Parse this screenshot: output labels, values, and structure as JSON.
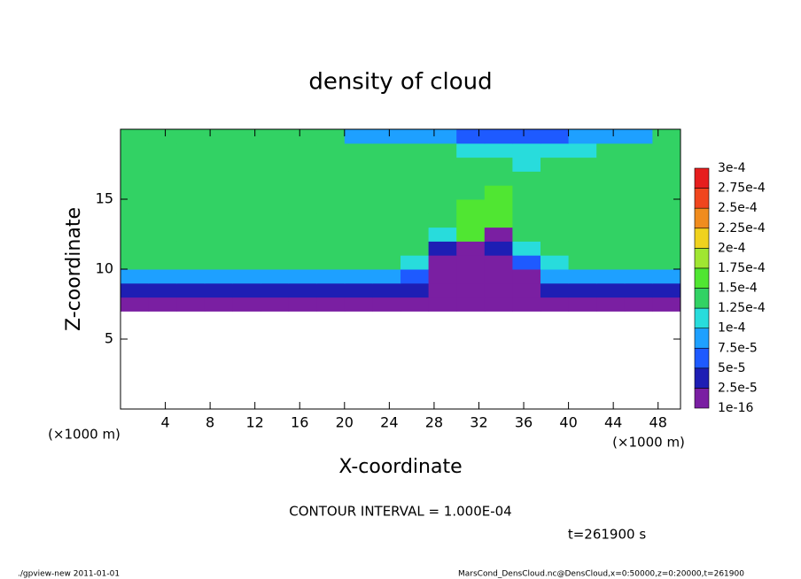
{
  "chart_data": {
    "type": "heatmap",
    "title": "density of cloud",
    "x_label": "X-coordinate",
    "y_label": "Z-coordinate",
    "x_unit_label": "(×1000 m)",
    "y_unit_label": "(×1000 m)",
    "xlim": [
      0,
      50
    ],
    "ylim": [
      0,
      20
    ],
    "xticks": [
      4,
      8,
      12,
      16,
      20,
      24,
      28,
      32,
      36,
      40,
      44,
      48
    ],
    "yticks": [
      5,
      10,
      15
    ],
    "x": [
      1.25,
      3.75,
      6.25,
      8.75,
      11.25,
      13.75,
      16.25,
      18.75,
      21.25,
      23.75,
      26.25,
      28.75,
      31.25,
      33.75,
      36.25,
      38.75,
      41.25,
      43.75,
      46.25,
      48.75
    ],
    "z": [
      0.5,
      1.5,
      2.5,
      3.5,
      4.5,
      5.5,
      6.5,
      7.5,
      8.5,
      9.5,
      10.5,
      11.5,
      12.5,
      13.5,
      14.5,
      15.5,
      16.5,
      17.5,
      18.5,
      19.5
    ],
    "field": [
      [
        null,
        null,
        null,
        null,
        null,
        null,
        null,
        null,
        null,
        null,
        null,
        null,
        null,
        null,
        null,
        null,
        null,
        null,
        null,
        null
      ],
      [
        null,
        null,
        null,
        null,
        null,
        null,
        null,
        null,
        null,
        null,
        null,
        null,
        null,
        null,
        null,
        null,
        null,
        null,
        null,
        null
      ],
      [
        null,
        null,
        null,
        null,
        null,
        null,
        null,
        null,
        null,
        null,
        null,
        null,
        null,
        null,
        null,
        null,
        null,
        null,
        null,
        null
      ],
      [
        null,
        null,
        null,
        null,
        null,
        null,
        null,
        null,
        null,
        null,
        null,
        null,
        null,
        null,
        null,
        null,
        null,
        null,
        null,
        null
      ],
      [
        null,
        null,
        null,
        null,
        null,
        null,
        null,
        null,
        null,
        null,
        null,
        null,
        null,
        null,
        null,
        null,
        null,
        null,
        null,
        null
      ],
      [
        null,
        null,
        null,
        null,
        null,
        null,
        null,
        null,
        null,
        null,
        null,
        null,
        null,
        null,
        null,
        null,
        null,
        null,
        null,
        null
      ],
      [
        null,
        null,
        null,
        null,
        null,
        null,
        null,
        null,
        null,
        null,
        null,
        null,
        null,
        null,
        null,
        null,
        null,
        null,
        null,
        null
      ],
      [
        1e-05,
        1e-05,
        1e-05,
        1e-05,
        1e-05,
        1e-05,
        1e-05,
        1e-05,
        1e-05,
        1e-05,
        1e-05,
        1e-05,
        1e-05,
        1e-05,
        1e-05,
        1e-05,
        1e-05,
        1e-05,
        1e-05,
        1e-05
      ],
      [
        4e-05,
        4e-05,
        4e-05,
        4e-05,
        4e-05,
        4e-05,
        4e-05,
        4e-05,
        4e-05,
        4e-05,
        4e-05,
        2e-05,
        2e-05,
        2e-05,
        2e-05,
        4e-05,
        4e-05,
        4e-05,
        4e-05,
        4e-05
      ],
      [
        8e-05,
        8e-05,
        8e-05,
        8e-05,
        8e-05,
        8e-05,
        8e-05,
        8e-05,
        8e-05,
        8e-05,
        6e-05,
        2e-05,
        2e-05,
        2e-05,
        2e-05,
        8e-05,
        8e-05,
        8e-05,
        8e-05,
        8e-05
      ],
      [
        0.00013,
        0.00013,
        0.00013,
        0.00013,
        0.00013,
        0.00013,
        0.00013,
        0.00013,
        0.00013,
        0.00013,
        0.0001,
        2e-05,
        2e-05,
        2e-05,
        6e-05,
        0.00011,
        0.00013,
        0.00013,
        0.00013,
        0.00013
      ],
      [
        0.00013,
        0.00013,
        0.00013,
        0.00013,
        0.00013,
        0.00013,
        0.00013,
        0.00013,
        0.00013,
        0.00013,
        0.00013,
        4e-05,
        2e-05,
        3e-05,
        0.00012,
        0.00013,
        0.00013,
        0.00013,
        0.00013,
        0.00013
      ],
      [
        0.00013,
        0.00013,
        0.00013,
        0.00013,
        0.00013,
        0.00013,
        0.00013,
        0.00013,
        0.00013,
        0.00013,
        0.00013,
        0.0001,
        0.00016,
        2e-05,
        0.00013,
        0.00013,
        0.00013,
        0.00013,
        0.00013,
        0.00013
      ],
      [
        0.000135,
        0.000135,
        0.000135,
        0.000135,
        0.000135,
        0.000135,
        0.000135,
        0.000135,
        0.000135,
        0.000135,
        0.000135,
        0.000135,
        0.00017,
        0.00016,
        0.000135,
        0.000135,
        0.000135,
        0.000135,
        0.000135,
        0.000135
      ],
      [
        0.000135,
        0.000135,
        0.000135,
        0.000135,
        0.000135,
        0.000135,
        0.000135,
        0.000135,
        0.000135,
        0.000135,
        0.000135,
        0.000135,
        0.00015,
        0.00016,
        0.000135,
        0.000135,
        0.000135,
        0.000135,
        0.000135,
        0.000135
      ],
      [
        0.000135,
        0.000135,
        0.000135,
        0.000135,
        0.000135,
        0.000135,
        0.000135,
        0.000135,
        0.000135,
        0.000135,
        0.000135,
        0.000135,
        0.000135,
        0.00016,
        0.000135,
        0.000135,
        0.000135,
        0.000135,
        0.000135,
        0.000135
      ],
      [
        0.000135,
        0.000135,
        0.000135,
        0.000135,
        0.000135,
        0.000135,
        0.000135,
        0.000135,
        0.000135,
        0.000135,
        0.000135,
        0.000135,
        0.000135,
        0.000135,
        0.000135,
        0.000135,
        0.000135,
        0.000135,
        0.000135,
        0.000135
      ],
      [
        0.000135,
        0.000135,
        0.000135,
        0.000135,
        0.000135,
        0.000135,
        0.000135,
        0.000135,
        0.000135,
        0.000135,
        0.000135,
        0.000135,
        0.000135,
        0.000135,
        0.00011,
        0.000135,
        0.000135,
        0.000135,
        0.000135,
        0.000135
      ],
      [
        0.00013,
        0.00013,
        0.00013,
        0.00013,
        0.00013,
        0.00013,
        0.00013,
        0.00013,
        0.00013,
        0.00013,
        0.00013,
        0.00013,
        0.00011,
        0.00011,
        0.00011,
        0.00011,
        0.00011,
        0.00013,
        0.00013,
        0.00013
      ],
      [
        0.000125,
        0.000125,
        0.000125,
        0.000125,
        0.000125,
        0.000125,
        0.000125,
        0.000125,
        9e-05,
        9e-05,
        9e-05,
        9e-05,
        6e-05,
        6e-05,
        6e-05,
        6e-05,
        9e-05,
        9e-05,
        9e-05,
        0.000125
      ]
    ],
    "levels": [
      {
        "value": 1e-16,
        "label": "1e-16"
      },
      {
        "value": 2.5e-05,
        "label": "2.5e-5"
      },
      {
        "value": 5e-05,
        "label": "5e-5"
      },
      {
        "value": 7.5e-05,
        "label": "7.5e-5"
      },
      {
        "value": 0.0001,
        "label": "1e-4"
      },
      {
        "value": 0.000125,
        "label": "1.25e-4"
      },
      {
        "value": 0.00015,
        "label": "1.5e-4"
      },
      {
        "value": 0.000175,
        "label": "1.75e-4"
      },
      {
        "value": 0.0002,
        "label": "2e-4"
      },
      {
        "value": 0.000225,
        "label": "2.25e-4"
      },
      {
        "value": 0.00025,
        "label": "2.5e-4"
      },
      {
        "value": 0.000275,
        "label": "2.75e-4"
      },
      {
        "value": 0.0003,
        "label": "3e-4"
      }
    ],
    "colors": [
      "#7a1fa2",
      "#1e1eb4",
      "#1e5aff",
      "#1ea0ff",
      "#28dcdc",
      "#32d264",
      "#50e632",
      "#a0e632",
      "#f0d21e",
      "#f08c1e",
      "#f0461e",
      "#e61e1e",
      "#f09090"
    ],
    "contour_note": "CONTOUR INTERVAL = 1.000E-04",
    "time_label": "t=261900 s",
    "footer_left": "./gpview-new   2011-01-01",
    "footer_right": "MarsCond_DensCloud.nc@DensCloud,x=0:50000,z=0:20000,t=261900"
  }
}
